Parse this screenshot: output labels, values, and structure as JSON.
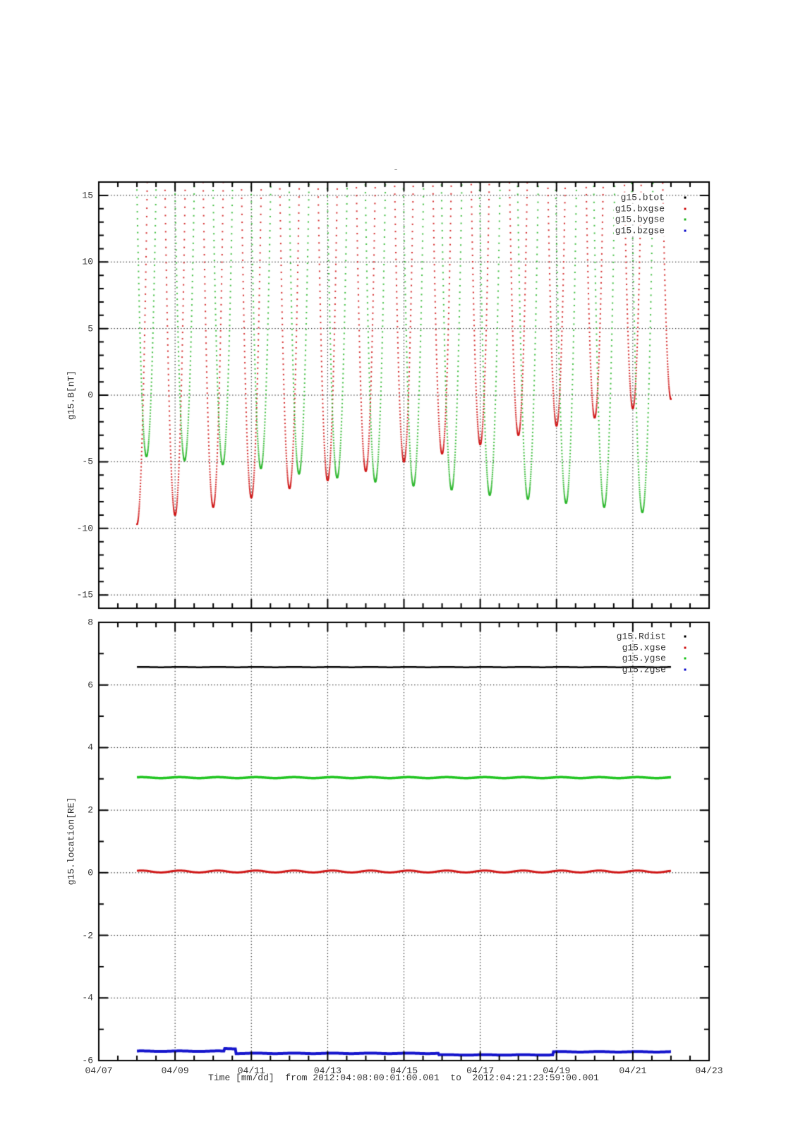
{
  "figure": {
    "title": "-",
    "background": "#ffffff"
  },
  "time_axis": {
    "label": "Time [mm/dd]  from 2012:04:08:00:01:00.001  to  2012:04:21:23:59:00.001",
    "tick_labels": [
      "04/07",
      "04/09",
      "04/11",
      "04/13",
      "04/15",
      "04/17",
      "04/19",
      "04/21",
      "04/23"
    ],
    "tick_day_offsets": [
      0,
      2,
      4,
      6,
      8,
      10,
      12,
      14,
      16
    ],
    "minor_step_days": 0.5,
    "range_days": [
      0,
      16
    ],
    "data_range_days": [
      1,
      15
    ],
    "start_time": "2012:04:08:00:01:00.001",
    "end_time": "2012:04:21:23:59:00.001"
  },
  "chart_data": [
    {
      "type": "scatter",
      "panel": "top",
      "ylabel": "g15.B[nT]",
      "ylim": [
        -16,
        16
      ],
      "yticks": [
        15,
        10,
        5,
        0,
        -5,
        -10,
        -15
      ],
      "y_minor_step": 1,
      "grid": "dotted",
      "legend_position": "top-right-inside",
      "legend": [
        "g15.btot",
        "g15.bxgse",
        "g15.bygse",
        "g15.bzgse"
      ],
      "series": [
        {
          "name": "g15.btot",
          "color": "#000000",
          "style": "dots",
          "visible_in_range": false
        },
        {
          "name": "g15.bxgse",
          "color": "#d01818",
          "style": "dots",
          "pattern": "daily V-shaped dips, curve off-scale above +16 nT between dips",
          "dip_centers_days": [
            1,
            2,
            3,
            4,
            5,
            6,
            7,
            8,
            9,
            10,
            11,
            12,
            13,
            14,
            15
          ],
          "dip_minima_nT": [
            -9.7,
            -9.0,
            -8.4,
            -7.7,
            -7.0,
            -6.4,
            -5.7,
            -5.0,
            -4.4,
            -3.7,
            -3.0,
            -2.3,
            -1.7,
            -1.0,
            -0.3
          ],
          "parabola_coeff": 350
        },
        {
          "name": "g15.bygse",
          "color": "#2eb82e",
          "style": "dots",
          "pattern": "daily V-shaped dips, curve off-scale above +16 nT between dips",
          "dip_centers_days": [
            1.25,
            2.25,
            3.25,
            4.25,
            5.25,
            6.25,
            7.25,
            8.25,
            9.25,
            10.25,
            11.25,
            12.25,
            13.25,
            14.25
          ],
          "dip_minima_nT": [
            -4.6,
            -4.9,
            -5.2,
            -5.5,
            -5.9,
            -6.2,
            -6.5,
            -6.8,
            -7.1,
            -7.5,
            -7.8,
            -8.1,
            -8.4,
            -8.8
          ],
          "parabola_coeff": 320
        },
        {
          "name": "g15.bzgse",
          "color": "#1414cc",
          "style": "dots",
          "visible_in_range": false
        }
      ]
    },
    {
      "type": "line",
      "panel": "bottom",
      "ylabel": "g15.location[RE]",
      "ylim": [
        -6,
        8
      ],
      "yticks": [
        8,
        6,
        4,
        2,
        0,
        -2,
        -4,
        -6
      ],
      "y_minor_step": 1,
      "grid": "dotted",
      "legend_position": "top-right-inside",
      "legend": [
        "g15.Rdist",
        "g15.xgse",
        "g15.ygse",
        "g15.zgse"
      ],
      "series": [
        {
          "name": "g15.Rdist",
          "color": "#000000",
          "style": "line",
          "width": 2.5,
          "value_RE": 6.57,
          "wobble_amp": 0.005
        },
        {
          "name": "g15.xgse",
          "color": "#d01818",
          "style": "line",
          "width": 3,
          "value_RE": 0.04,
          "wobble_amp": 0.03
        },
        {
          "name": "g15.ygse",
          "color": "#1ec41e",
          "style": "line",
          "width": 3.5,
          "value_RE": 3.04,
          "wobble_amp": 0.015
        },
        {
          "name": "g15.zgse",
          "color": "#1414cc",
          "style": "line",
          "width": 4,
          "wobble_amp": 0.008,
          "segments": [
            {
              "from": 1.0,
              "to": 3.3,
              "value": -5.7
            },
            {
              "from": 3.3,
              "to": 3.6,
              "value": -5.62
            },
            {
              "from": 3.6,
              "to": 8.9,
              "value": -5.77
            },
            {
              "from": 8.9,
              "to": 11.9,
              "value": -5.82
            },
            {
              "from": 11.9,
              "to": 15.0,
              "value": -5.72
            }
          ]
        }
      ]
    }
  ]
}
